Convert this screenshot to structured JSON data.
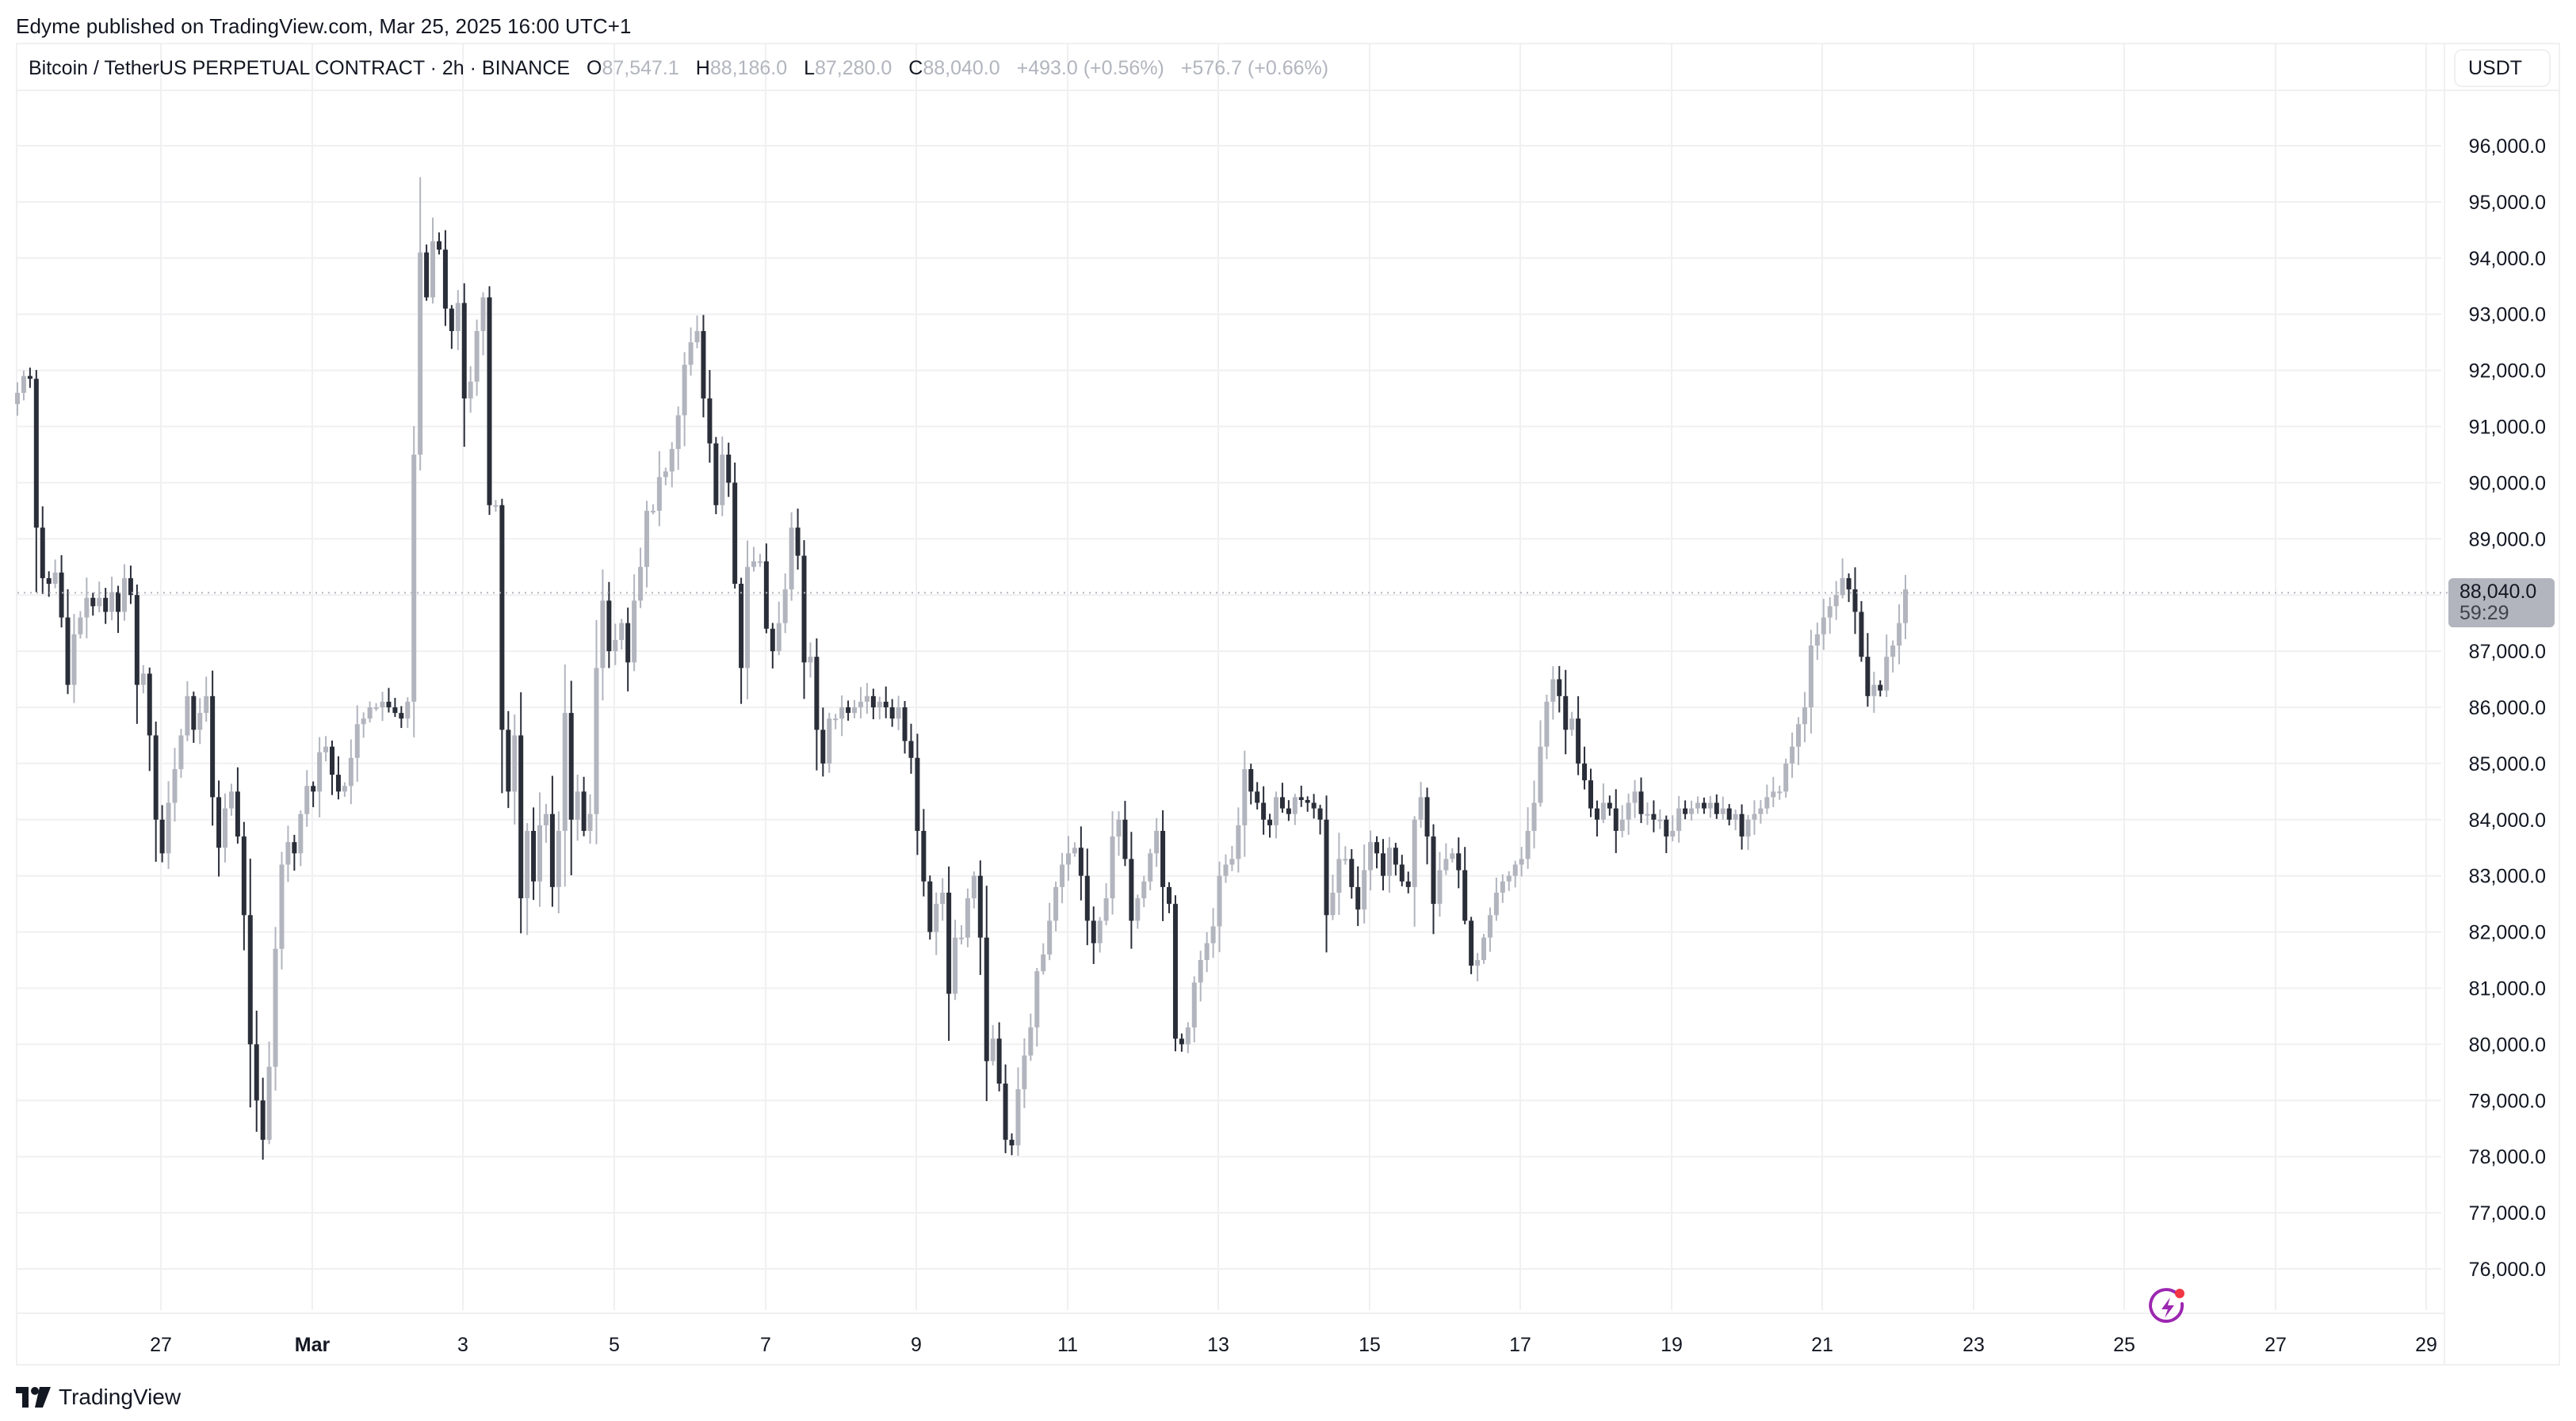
{
  "header": {
    "published": "Edyme published on TradingView.com, Mar 25, 2025 16:00 UTC+1"
  },
  "legend": {
    "symbol": "Bitcoin / TetherUS PERPETUAL CONTRACT · 2h · BINANCE",
    "open_label": "O",
    "open": "87,547.1",
    "high_label": "H",
    "high": "88,186.0",
    "low_label": "L",
    "low": "87,280.0",
    "close_label": "C",
    "close": "88,040.0",
    "change": "+493.0 (+0.56%)",
    "change2": "+576.7 (+0.66%)"
  },
  "price_scale": {
    "currency": "USDT",
    "current_price": "88,040.0",
    "countdown": "59:29"
  },
  "footer": {
    "brand": "TradingView",
    "logo_icon": "tradingview-logo-icon"
  },
  "colors": {
    "bull": "#b2b5be",
    "bear": "#2a2e39",
    "grid": "#f0f0f2",
    "price_line": "#b2b5be",
    "bolt": "#9c27b0",
    "bolt_dot": "#f23645"
  },
  "chart_data": {
    "type": "candlestick",
    "title": "Bitcoin / TetherUS PERPETUAL CONTRACT · 2h · BINANCE",
    "xlabel": "",
    "ylabel": "USDT",
    "ylim": [
      75300,
      97000
    ],
    "grid": true,
    "y_ticks": [
      "96,000.0",
      "95,000.0",
      "94,000.0",
      "93,000.0",
      "92,000.0",
      "91,000.0",
      "90,000.0",
      "89,000.0",
      "88,000.0",
      "87,000.0",
      "86,000.0",
      "85,000.0",
      "84,000.0",
      "83,000.0",
      "82,000.0",
      "81,000.0",
      "80,000.0",
      "79,000.0",
      "78,000.0",
      "77,000.0",
      "76,000.0"
    ],
    "x_ticks": [
      {
        "label": "27",
        "x": 203,
        "bold": false
      },
      {
        "label": "Mar",
        "x": 394,
        "bold": true
      },
      {
        "label": "3",
        "x": 584,
        "bold": false
      },
      {
        "label": "5",
        "x": 775,
        "bold": false
      },
      {
        "label": "7",
        "x": 966,
        "bold": false
      },
      {
        "label": "9",
        "x": 1156,
        "bold": false
      },
      {
        "label": "11",
        "x": 1347,
        "bold": false
      },
      {
        "label": "13",
        "x": 1537,
        "bold": false
      },
      {
        "label": "15",
        "x": 1728,
        "bold": false
      },
      {
        "label": "17",
        "x": 1918,
        "bold": false
      },
      {
        "label": "19",
        "x": 2109,
        "bold": false
      },
      {
        "label": "21",
        "x": 2299,
        "bold": false
      },
      {
        "label": "23",
        "x": 2490,
        "bold": false
      },
      {
        "label": "25",
        "x": 2680,
        "bold": false
      },
      {
        "label": "27",
        "x": 2871,
        "bold": false
      },
      {
        "label": "29",
        "x": 3061,
        "bold": false
      }
    ],
    "last_price": 88040.0,
    "candle_spacing_px": 7.94,
    "first_candle_x": 22,
    "closes": [
      91600,
      91900,
      91850,
      89200,
      88300,
      88200,
      88400,
      87600,
      86400,
      87300,
      87600,
      87950,
      87800,
      87950,
      87700,
      88050,
      87700,
      88300,
      88000,
      86400,
      86600,
      85500,
      84000,
      83400,
      84300,
      84900,
      85500,
      86200,
      85600,
      85900,
      86200,
      84400,
      83500,
      84200,
      84500,
      83700,
      82300,
      80000,
      79000,
      78300,
      79600,
      81700,
      83200,
      83600,
      83400,
      84100,
      84600,
      84500,
      85200,
      85300,
      84800,
      84500,
      84600,
      85100,
      85700,
      85800,
      86000,
      86000,
      86100,
      86000,
      85900,
      85800,
      86100,
      90500,
      94100,
      93300,
      94300,
      94150,
      93100,
      92700,
      93200,
      91500,
      91800,
      92700,
      93300,
      89600,
      89600,
      85600,
      84500,
      85500,
      82600,
      83800,
      82900,
      83900,
      84100,
      82800,
      83800,
      85900,
      84000,
      84500,
      83800,
      84100,
      86700,
      87900,
      87000,
      87200,
      87500,
      86800,
      87900,
      88500,
      89500,
      89500,
      90100,
      90200,
      90600,
      91200,
      92100,
      92500,
      92700,
      91500,
      90700,
      89600,
      90500,
      90000,
      88200,
      86700,
      88500,
      88600,
      88600,
      87400,
      87000,
      87500,
      88100,
      89200,
      88700,
      86800,
      86900,
      85600,
      85000,
      85800,
      85800,
      86000,
      85900,
      86000,
      86100,
      86200,
      86000,
      86100,
      86000,
      85800,
      86000,
      85400,
      85100,
      83800,
      82900,
      82000,
      82500,
      82700,
      80900,
      81900,
      81900,
      82600,
      83000,
      81900,
      79700,
      80100,
      79300,
      78300,
      78200,
      79200,
      79800,
      80300,
      81300,
      81600,
      82200,
      82800,
      83200,
      83400,
      83500,
      83000,
      82200,
      81800,
      82200,
      82600,
      83700,
      84000,
      83300,
      82200,
      82600,
      82900,
      83400,
      83800,
      82800,
      82500,
      80100,
      80000,
      80300,
      81100,
      81500,
      81800,
      82100,
      83000,
      83200,
      83300,
      83900,
      84900,
      84500,
      84300,
      84000,
      83900,
      84400,
      84200,
      84100,
      84400,
      84350,
      84300,
      84200,
      84000,
      82300,
      82700,
      83300,
      83300,
      82800,
      82400,
      83100,
      83600,
      83400,
      83000,
      83500,
      83200,
      82900,
      82800,
      84000,
      84400,
      83700,
      82500,
      83100,
      83300,
      83400,
      83100,
      82200,
      81400,
      81500,
      81900,
      82300,
      82700,
      82900,
      83000,
      83200,
      83300,
      83800,
      84300,
      85300,
      86100,
      86500,
      86200,
      85600,
      85800,
      85000,
      84700,
      84200,
      84000,
      84300,
      84200,
      83800,
      84000,
      84300,
      84500,
      84100,
      84100,
      84000,
      84000,
      83700,
      83800,
      84200,
      84100,
      84200,
      84300,
      84200,
      84300,
      84100,
      84200,
      84000,
      84100,
      83700,
      84000,
      84100,
      84200,
      84400,
      84500,
      84500,
      85000,
      85300,
      85700,
      86000,
      87100,
      87300,
      87600,
      87800,
      88000,
      88300,
      88100,
      87700,
      86900,
      86200,
      86400,
      86300,
      86900,
      87100,
      87500,
      88100
    ]
  }
}
